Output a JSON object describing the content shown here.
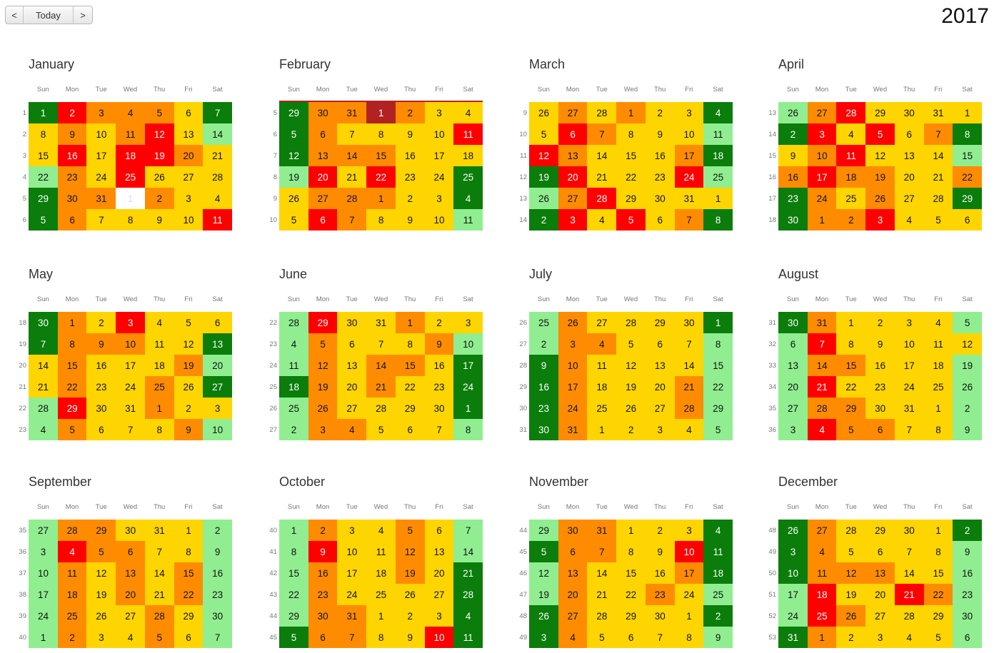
{
  "nav": {
    "prev_label": "<",
    "today_label": "Today",
    "next_label": ">"
  },
  "year": "2017",
  "weekdays": [
    "Sun",
    "Mon",
    "Tue",
    "Wed",
    "Thu",
    "Fri",
    "Sat"
  ],
  "colors": {
    "dg": "#0a7d0a",
    "lg": "#90ee90",
    "y": "#ffd500",
    "o": "#ff8c00",
    "r": "#ff0000",
    "dr": "#b22222",
    "w": "#ffffff"
  },
  "months": [
    {
      "name": "January",
      "weeks": [
        1,
        2,
        3,
        4,
        5,
        6
      ],
      "days": [
        1,
        2,
        3,
        4,
        5,
        6,
        7,
        8,
        9,
        10,
        11,
        12,
        13,
        14,
        15,
        16,
        17,
        18,
        19,
        20,
        21,
        22,
        23,
        24,
        25,
        26,
        27,
        28,
        29,
        30,
        31,
        1,
        2,
        3,
        4,
        5,
        6,
        7,
        8,
        9,
        10,
        11
      ],
      "colors": [
        "dg",
        "r",
        "o",
        "o",
        "o",
        "y",
        "dg",
        "y",
        "o",
        "y",
        "o",
        "r",
        "y",
        "lg",
        "y",
        "r",
        "y",
        "r",
        "r",
        "o",
        "y",
        "lg",
        "o",
        "y",
        "r",
        "y",
        "y",
        "y",
        "dg",
        "o",
        "o",
        "w",
        "o",
        "y",
        "y",
        "dg",
        "o",
        "y",
        "y",
        "y",
        "y",
        "r"
      ]
    },
    {
      "name": "February",
      "weeks": [
        5,
        6,
        7,
        8,
        9,
        10
      ],
      "days": [
        29,
        30,
        31,
        1,
        2,
        3,
        4,
        5,
        6,
        7,
        8,
        9,
        10,
        11,
        12,
        13,
        14,
        15,
        16,
        17,
        18,
        19,
        20,
        21,
        22,
        23,
        24,
        25,
        26,
        27,
        28,
        1,
        2,
        3,
        4,
        5,
        6,
        7,
        8,
        9,
        10,
        11
      ],
      "colors": [
        "dg",
        "o",
        "o",
        "dr",
        "o",
        "y",
        "y",
        "dg",
        "o",
        "y",
        "y",
        "y",
        "y",
        "r",
        "dg",
        "o",
        "o",
        "o",
        "y",
        "y",
        "y",
        "lg",
        "r",
        "y",
        "r",
        "y",
        "y",
        "dg",
        "y",
        "o",
        "o",
        "o",
        "y",
        "y",
        "dg",
        "y",
        "r",
        "o",
        "y",
        "y",
        "y",
        "lg"
      ],
      "topline": true
    },
    {
      "name": "March",
      "weeks": [
        9,
        10,
        11,
        12,
        13,
        14
      ],
      "days": [
        26,
        27,
        28,
        1,
        2,
        3,
        4,
        5,
        6,
        7,
        8,
        9,
        10,
        11,
        12,
        13,
        14,
        15,
        16,
        17,
        18,
        19,
        20,
        21,
        22,
        23,
        24,
        25,
        26,
        27,
        28,
        29,
        30,
        31,
        1,
        2,
        3,
        4,
        5,
        6,
        7,
        8
      ],
      "colors": [
        "y",
        "o",
        "y",
        "o",
        "y",
        "y",
        "dg",
        "y",
        "r",
        "o",
        "y",
        "y",
        "y",
        "lg",
        "r",
        "o",
        "y",
        "y",
        "y",
        "o",
        "dg",
        "dg",
        "r",
        "y",
        "y",
        "y",
        "r",
        "lg",
        "lg",
        "o",
        "r",
        "y",
        "y",
        "y",
        "y",
        "dg",
        "r",
        "y",
        "r",
        "y",
        "o",
        "dg"
      ]
    },
    {
      "name": "April",
      "weeks": [
        13,
        14,
        15,
        16,
        17,
        18
      ],
      "days": [
        26,
        27,
        28,
        29,
        30,
        31,
        1,
        2,
        3,
        4,
        5,
        6,
        7,
        8,
        9,
        10,
        11,
        12,
        13,
        14,
        15,
        16,
        17,
        18,
        19,
        20,
        21,
        22,
        23,
        24,
        25,
        26,
        27,
        28,
        29,
        30,
        1,
        2,
        3,
        4,
        5,
        6
      ],
      "colors": [
        "lg",
        "o",
        "r",
        "y",
        "y",
        "y",
        "y",
        "dg",
        "r",
        "y",
        "r",
        "y",
        "o",
        "dg",
        "y",
        "o",
        "r",
        "y",
        "y",
        "y",
        "lg",
        "o",
        "r",
        "o",
        "o",
        "y",
        "y",
        "o",
        "dg",
        "o",
        "y",
        "o",
        "y",
        "y",
        "dg",
        "dg",
        "o",
        "o",
        "r",
        "y",
        "y",
        "y"
      ]
    },
    {
      "name": "May",
      "weeks": [
        18,
        19,
        20,
        21,
        22,
        23
      ],
      "days": [
        30,
        1,
        2,
        3,
        4,
        5,
        6,
        7,
        8,
        9,
        10,
        11,
        12,
        13,
        14,
        15,
        16,
        17,
        18,
        19,
        20,
        21,
        22,
        23,
        24,
        25,
        26,
        27,
        28,
        29,
        30,
        31,
        1,
        2,
        3,
        4,
        5,
        6,
        7,
        8,
        9,
        10
      ],
      "colors": [
        "dg",
        "o",
        "y",
        "r",
        "y",
        "y",
        "y",
        "dg",
        "o",
        "o",
        "o",
        "y",
        "y",
        "dg",
        "y",
        "o",
        "y",
        "y",
        "y",
        "o",
        "lg",
        "y",
        "o",
        "y",
        "y",
        "o",
        "y",
        "dg",
        "lg",
        "r",
        "y",
        "y",
        "o",
        "y",
        "y",
        "lg",
        "o",
        "y",
        "y",
        "y",
        "o",
        "lg"
      ]
    },
    {
      "name": "June",
      "weeks": [
        22,
        23,
        24,
        25,
        26,
        27
      ],
      "days": [
        28,
        29,
        30,
        31,
        1,
        2,
        3,
        4,
        5,
        6,
        7,
        8,
        9,
        10,
        11,
        12,
        13,
        14,
        15,
        16,
        17,
        18,
        19,
        20,
        21,
        22,
        23,
        24,
        25,
        26,
        27,
        28,
        29,
        30,
        1,
        2,
        3,
        4,
        5,
        6,
        7,
        8
      ],
      "colors": [
        "lg",
        "r",
        "y",
        "y",
        "o",
        "y",
        "y",
        "lg",
        "o",
        "y",
        "y",
        "y",
        "o",
        "lg",
        "lg",
        "o",
        "y",
        "o",
        "o",
        "y",
        "dg",
        "dg",
        "o",
        "y",
        "o",
        "y",
        "y",
        "dg",
        "lg",
        "o",
        "y",
        "y",
        "y",
        "y",
        "dg",
        "lg",
        "o",
        "o",
        "y",
        "y",
        "y",
        "lg"
      ]
    },
    {
      "name": "July",
      "weeks": [
        26,
        27,
        28,
        29,
        30,
        31
      ],
      "days": [
        25,
        26,
        27,
        28,
        29,
        30,
        1,
        2,
        3,
        4,
        5,
        6,
        7,
        8,
        9,
        10,
        11,
        12,
        13,
        14,
        15,
        16,
        17,
        18,
        19,
        20,
        21,
        22,
        23,
        24,
        25,
        26,
        27,
        28,
        29,
        30,
        31,
        1,
        2,
        3,
        4,
        5
      ],
      "colors": [
        "lg",
        "o",
        "y",
        "y",
        "y",
        "y",
        "dg",
        "lg",
        "o",
        "o",
        "y",
        "y",
        "y",
        "lg",
        "dg",
        "o",
        "y",
        "y",
        "y",
        "y",
        "lg",
        "dg",
        "o",
        "y",
        "y",
        "y",
        "o",
        "lg",
        "dg",
        "o",
        "y",
        "y",
        "y",
        "o",
        "lg",
        "dg",
        "o",
        "y",
        "y",
        "y",
        "y",
        "lg"
      ]
    },
    {
      "name": "August",
      "weeks": [
        31,
        32,
        33,
        34,
        35,
        36
      ],
      "days": [
        30,
        31,
        1,
        2,
        3,
        4,
        5,
        6,
        7,
        8,
        9,
        10,
        11,
        12,
        13,
        14,
        15,
        16,
        17,
        18,
        19,
        20,
        21,
        22,
        23,
        24,
        25,
        26,
        27,
        28,
        29,
        30,
        31,
        1,
        2,
        3,
        4,
        5,
        6,
        7,
        8,
        9
      ],
      "colors": [
        "dg",
        "o",
        "y",
        "y",
        "y",
        "y",
        "lg",
        "lg",
        "r",
        "y",
        "y",
        "y",
        "y",
        "y",
        "lg",
        "o",
        "o",
        "y",
        "y",
        "y",
        "lg",
        "lg",
        "r",
        "y",
        "y",
        "y",
        "y",
        "lg",
        "lg",
        "o",
        "o",
        "y",
        "y",
        "y",
        "lg",
        "lg",
        "r",
        "o",
        "o",
        "y",
        "y",
        "lg"
      ]
    },
    {
      "name": "September",
      "weeks": [
        35,
        36,
        37,
        38,
        39,
        40
      ],
      "days": [
        27,
        28,
        29,
        30,
        31,
        1,
        2,
        3,
        4,
        5,
        6,
        7,
        8,
        9,
        10,
        11,
        12,
        13,
        14,
        15,
        16,
        17,
        18,
        19,
        20,
        21,
        22,
        23,
        24,
        25,
        26,
        27,
        28,
        29,
        30,
        1,
        2,
        3,
        4,
        5,
        6,
        7
      ],
      "colors": [
        "lg",
        "o",
        "o",
        "y",
        "y",
        "y",
        "lg",
        "lg",
        "r",
        "o",
        "o",
        "y",
        "y",
        "lg",
        "lg",
        "o",
        "y",
        "o",
        "y",
        "o",
        "lg",
        "lg",
        "o",
        "y",
        "o",
        "y",
        "o",
        "lg",
        "lg",
        "o",
        "y",
        "y",
        "o",
        "y",
        "lg",
        "lg",
        "o",
        "y",
        "y",
        "o",
        "y",
        "lg"
      ]
    },
    {
      "name": "October",
      "weeks": [
        40,
        41,
        42,
        43,
        44,
        45
      ],
      "days": [
        1,
        2,
        3,
        4,
        5,
        6,
        7,
        8,
        9,
        10,
        11,
        12,
        13,
        14,
        15,
        16,
        17,
        18,
        19,
        20,
        21,
        22,
        23,
        24,
        25,
        26,
        27,
        28,
        29,
        30,
        31,
        1,
        2,
        3,
        4,
        5,
        6,
        7,
        8,
        9,
        10,
        11
      ],
      "colors": [
        "lg",
        "o",
        "y",
        "y",
        "o",
        "y",
        "lg",
        "lg",
        "r",
        "y",
        "y",
        "o",
        "y",
        "lg",
        "lg",
        "o",
        "y",
        "y",
        "o",
        "y",
        "dg",
        "lg",
        "o",
        "y",
        "y",
        "y",
        "y",
        "dg",
        "lg",
        "o",
        "o",
        "y",
        "y",
        "y",
        "dg",
        "dg",
        "o",
        "o",
        "y",
        "y",
        "r",
        "dg"
      ]
    },
    {
      "name": "November",
      "weeks": [
        44,
        45,
        46,
        47,
        48,
        49
      ],
      "days": [
        29,
        30,
        31,
        1,
        2,
        3,
        4,
        5,
        6,
        7,
        8,
        9,
        10,
        11,
        12,
        13,
        14,
        15,
        16,
        17,
        18,
        19,
        20,
        21,
        22,
        23,
        24,
        25,
        26,
        27,
        28,
        29,
        30,
        1,
        2,
        3,
        4,
        5,
        6,
        7,
        8,
        9
      ],
      "colors": [
        "lg",
        "o",
        "o",
        "y",
        "y",
        "y",
        "dg",
        "dg",
        "o",
        "o",
        "y",
        "y",
        "r",
        "dg",
        "lg",
        "o",
        "y",
        "y",
        "y",
        "o",
        "dg",
        "lg",
        "o",
        "y",
        "y",
        "o",
        "y",
        "lg",
        "dg",
        "o",
        "y",
        "y",
        "y",
        "y",
        "dg",
        "dg",
        "o",
        "y",
        "y",
        "y",
        "y",
        "lg"
      ]
    },
    {
      "name": "December",
      "weeks": [
        48,
        49,
        50,
        51,
        52,
        53
      ],
      "days": [
        26,
        27,
        28,
        29,
        30,
        1,
        2,
        3,
        4,
        5,
        6,
        7,
        8,
        9,
        10,
        11,
        12,
        13,
        14,
        15,
        16,
        17,
        18,
        19,
        20,
        21,
        22,
        23,
        24,
        25,
        26,
        27,
        28,
        29,
        30,
        31,
        1,
        2,
        3,
        4,
        5,
        6
      ],
      "colors": [
        "dg",
        "o",
        "y",
        "y",
        "y",
        "y",
        "dg",
        "dg",
        "o",
        "y",
        "y",
        "y",
        "y",
        "lg",
        "dg",
        "o",
        "o",
        "o",
        "y",
        "y",
        "lg",
        "lg",
        "r",
        "y",
        "y",
        "r",
        "o",
        "lg",
        "lg",
        "r",
        "o",
        "y",
        "y",
        "y",
        "lg",
        "dg",
        "o",
        "y",
        "y",
        "y",
        "y",
        "lg"
      ]
    }
  ]
}
